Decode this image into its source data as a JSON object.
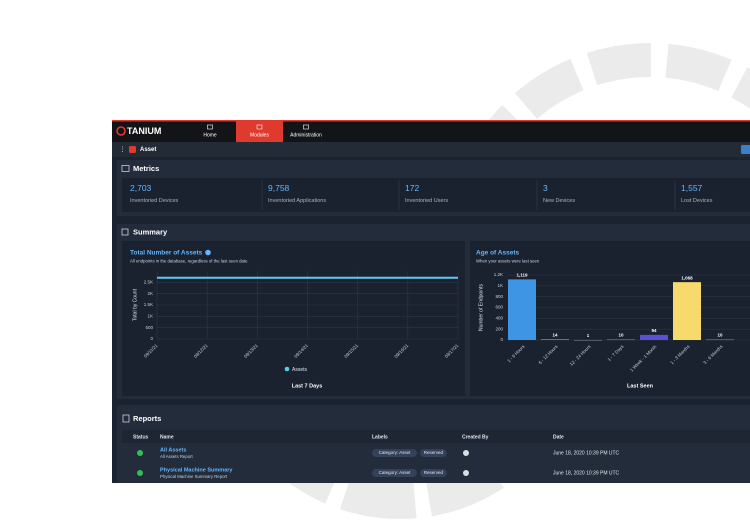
{
  "header": {
    "brand": "TANIUM",
    "nav": [
      "Home",
      "Modules",
      "Administration"
    ],
    "module": "Asset"
  },
  "metrics": {
    "title": "Metrics",
    "items": [
      {
        "value": "2,703",
        "label": "Inventoried Devices"
      },
      {
        "value": "9,758",
        "label": "Inventoried Applications"
      },
      {
        "value": "172",
        "label": "Inventoried Users"
      },
      {
        "value": "3",
        "label": "New Devices"
      },
      {
        "value": "1,557",
        "label": "Lost Devices"
      }
    ]
  },
  "summary": {
    "title": "Summary"
  },
  "chart_data": [
    {
      "type": "line",
      "title": "Total Number of Assets",
      "subtitle": "All endpoints in the database, regardless of the last seen date",
      "categories": [
        "09/11/21",
        "09/12/21",
        "09/13/21",
        "09/14/21",
        "09/15/21",
        "09/16/21",
        "09/17/21"
      ],
      "series": [
        {
          "name": "Assets",
          "color": "#5ccbf2",
          "values": [
            2703,
            2703,
            2703,
            2703,
            2703,
            2703,
            2703
          ]
        }
      ],
      "ylim": [
        0,
        3000
      ],
      "yticks": [
        0,
        500,
        {
          "value": 1000,
          "label": "1K"
        },
        {
          "value": 1500,
          "label": "1.5K"
        },
        {
          "value": 2000,
          "label": "2K"
        },
        {
          "value": 2500,
          "label": "2.5K"
        }
      ],
      "ylabel": "Total by Count",
      "xlabel": "Last 7 Days",
      "grid": true
    },
    {
      "type": "bar",
      "title": "Age of Assets",
      "subtitle": "When your assets were last seen",
      "categories": [
        "1 - 6 Hours",
        "6 - 12 Hours",
        "12 - 24 Hours",
        "1 - 7 Days",
        "1 Week - 1 Month",
        "1 - 3 Months",
        "3 - 6 Months"
      ],
      "values": [
        1119,
        14,
        1,
        10,
        94,
        1068,
        10
      ],
      "value_labels": [
        "1,119",
        "14",
        "1",
        "10",
        "94",
        "1,068",
        "10"
      ],
      "colors": [
        "#3d95e3",
        "#7d8794",
        "#7d8794",
        "#7d8794",
        "#5b4fd4",
        "#f7d96e",
        "#7d8794"
      ],
      "ylim": [
        0,
        1200
      ],
      "yticks": [
        0,
        200,
        400,
        600,
        800,
        {
          "value": 1000,
          "label": "1K"
        },
        {
          "value": 1200,
          "label": "1.2K"
        }
      ],
      "ylabel": "Number of Endpoints",
      "xlabel": "Last Seen",
      "grid": true
    }
  ],
  "reports": {
    "title": "Reports",
    "columns": [
      "Status",
      "Name",
      "Labels",
      "Created By",
      "Date"
    ],
    "rows": [
      {
        "name": "All Assets",
        "description": "All Assets Report",
        "labels": [
          "Category: Asset",
          "Reserved"
        ],
        "date": "June 18, 2020 10:39 PM UTC"
      },
      {
        "name": "Physical Machine Summary",
        "description": "Physical Machine Summary Report",
        "labels": [
          "Category: Asset",
          "Reserved"
        ],
        "date": "June 18, 2020 10:39 PM UTC"
      }
    ]
  }
}
